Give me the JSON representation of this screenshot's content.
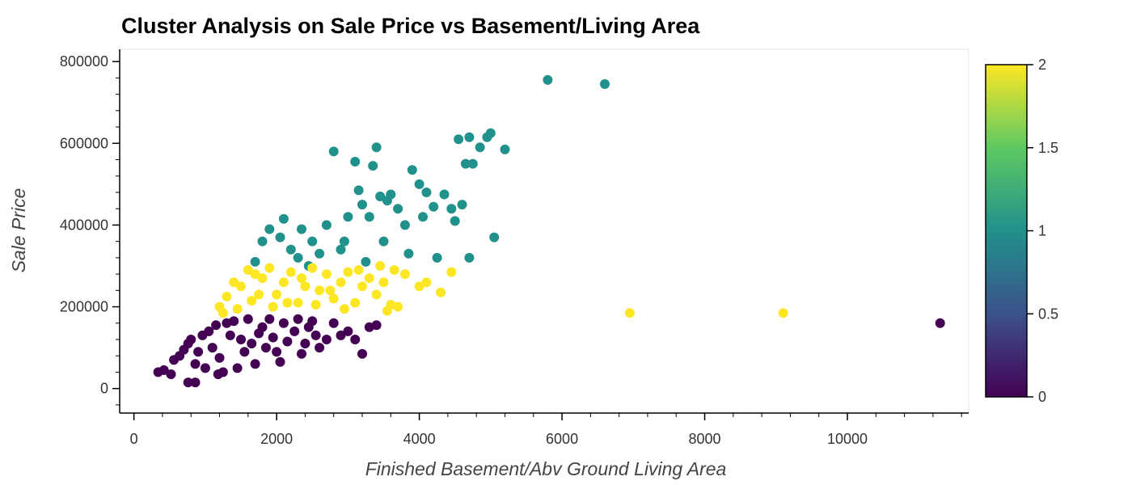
{
  "chart_data": {
    "type": "scatter",
    "title": "Cluster Analysis on Sale Price vs Basement/Living Area",
    "xlabel": "Finished Basement/Abv Ground Living Area",
    "ylabel": "Sale Price",
    "xlim": [
      -200,
      11700
    ],
    "ylim": [
      -60000,
      830000
    ],
    "x_ticks": [
      0,
      2000,
      4000,
      6000,
      8000,
      10000
    ],
    "x_tick_labels": [
      "0",
      "2000",
      "4000",
      "6000",
      "8000",
      "10000"
    ],
    "y_ticks": [
      0,
      200000,
      400000,
      600000,
      800000
    ],
    "y_tick_labels": [
      "0",
      "200000",
      "400000",
      "600000",
      "800000"
    ],
    "grid": false,
    "colorbar": {
      "ticks": [
        0,
        0.5,
        1,
        1.5,
        2
      ],
      "tick_labels": [
        "0",
        "0.5",
        "1",
        "1.5",
        "2"
      ],
      "colors": [
        "#440154",
        "#3b528b",
        "#21918c",
        "#5ec962",
        "#fde725"
      ]
    },
    "series": [
      {
        "cluster": 0,
        "color": "#440154",
        "points": [
          [
            340,
            40000
          ],
          [
            420,
            45000
          ],
          [
            520,
            35000
          ],
          [
            560,
            70000
          ],
          [
            640,
            80000
          ],
          [
            700,
            95000
          ],
          [
            760,
            110000
          ],
          [
            800,
            120000
          ],
          [
            860,
            60000
          ],
          [
            760,
            15000
          ],
          [
            860,
            15000
          ],
          [
            960,
            130000
          ],
          [
            1000,
            50000
          ],
          [
            1050,
            140000
          ],
          [
            1150,
            155000
          ],
          [
            1180,
            35000
          ],
          [
            1250,
            40000
          ],
          [
            1300,
            160000
          ],
          [
            1400,
            165000
          ],
          [
            1450,
            50000
          ],
          [
            1500,
            120000
          ],
          [
            1600,
            170000
          ],
          [
            1700,
            60000
          ],
          [
            1800,
            150000
          ],
          [
            1900,
            170000
          ],
          [
            2000,
            90000
          ],
          [
            2050,
            65000
          ],
          [
            2100,
            160000
          ],
          [
            2300,
            170000
          ],
          [
            2400,
            110000
          ],
          [
            2500,
            165000
          ],
          [
            2600,
            100000
          ],
          [
            2800,
            160000
          ],
          [
            2900,
            130000
          ],
          [
            3000,
            140000
          ],
          [
            3100,
            120000
          ],
          [
            3200,
            85000
          ],
          [
            3300,
            150000
          ],
          [
            3400,
            155000
          ],
          [
            900,
            90000
          ],
          [
            1100,
            100000
          ],
          [
            1200,
            75000
          ],
          [
            1350,
            130000
          ],
          [
            1550,
            90000
          ],
          [
            1650,
            110000
          ],
          [
            1750,
            135000
          ],
          [
            1850,
            100000
          ],
          [
            1950,
            125000
          ],
          [
            2150,
            115000
          ],
          [
            2250,
            140000
          ],
          [
            2350,
            85000
          ],
          [
            2450,
            150000
          ],
          [
            2550,
            130000
          ],
          [
            2700,
            120000
          ],
          [
            11300,
            160000
          ]
        ]
      },
      {
        "cluster": 1,
        "color": "#21918c",
        "points": [
          [
            1700,
            310000
          ],
          [
            1800,
            360000
          ],
          [
            1900,
            390000
          ],
          [
            2050,
            370000
          ],
          [
            2100,
            415000
          ],
          [
            2200,
            340000
          ],
          [
            2350,
            390000
          ],
          [
            2500,
            360000
          ],
          [
            2700,
            400000
          ],
          [
            2800,
            580000
          ],
          [
            2950,
            360000
          ],
          [
            3100,
            555000
          ],
          [
            3150,
            485000
          ],
          [
            3200,
            450000
          ],
          [
            3300,
            420000
          ],
          [
            3350,
            545000
          ],
          [
            3400,
            590000
          ],
          [
            3450,
            470000
          ],
          [
            3550,
            460000
          ],
          [
            3600,
            475000
          ],
          [
            3700,
            440000
          ],
          [
            3800,
            400000
          ],
          [
            3850,
            330000
          ],
          [
            3900,
            535000
          ],
          [
            4000,
            500000
          ],
          [
            4050,
            420000
          ],
          [
            4100,
            480000
          ],
          [
            4200,
            445000
          ],
          [
            4250,
            320000
          ],
          [
            4350,
            475000
          ],
          [
            4450,
            440000
          ],
          [
            4500,
            410000
          ],
          [
            4550,
            610000
          ],
          [
            4600,
            450000
          ],
          [
            4650,
            550000
          ],
          [
            4700,
            615000
          ],
          [
            4700,
            320000
          ],
          [
            4750,
            550000
          ],
          [
            4850,
            590000
          ],
          [
            4950,
            615000
          ],
          [
            5000,
            625000
          ],
          [
            5050,
            370000
          ],
          [
            5200,
            585000
          ],
          [
            5800,
            755000
          ],
          [
            6600,
            745000
          ],
          [
            2300,
            320000
          ],
          [
            2600,
            330000
          ],
          [
            2900,
            340000
          ],
          [
            3000,
            420000
          ],
          [
            3500,
            360000
          ],
          [
            3250,
            310000
          ],
          [
            2450,
            300000
          ]
        ]
      },
      {
        "cluster": 2,
        "color": "#fde725",
        "points": [
          [
            1200,
            200000
          ],
          [
            1300,
            225000
          ],
          [
            1400,
            260000
          ],
          [
            1500,
            250000
          ],
          [
            1600,
            290000
          ],
          [
            1700,
            280000
          ],
          [
            1800,
            270000
          ],
          [
            1900,
            295000
          ],
          [
            2000,
            230000
          ],
          [
            2100,
            260000
          ],
          [
            2200,
            285000
          ],
          [
            2300,
            210000
          ],
          [
            2400,
            250000
          ],
          [
            2500,
            295000
          ],
          [
            2600,
            240000
          ],
          [
            2700,
            280000
          ],
          [
            2800,
            220000
          ],
          [
            2900,
            260000
          ],
          [
            3000,
            285000
          ],
          [
            3100,
            210000
          ],
          [
            3200,
            250000
          ],
          [
            3300,
            270000
          ],
          [
            3400,
            230000
          ],
          [
            3500,
            260000
          ],
          [
            3600,
            205000
          ],
          [
            3700,
            200000
          ],
          [
            3800,
            280000
          ],
          [
            4000,
            250000
          ],
          [
            4100,
            260000
          ],
          [
            4300,
            235000
          ],
          [
            4450,
            285000
          ],
          [
            6950,
            185000
          ],
          [
            9100,
            185000
          ],
          [
            1250,
            185000
          ],
          [
            1450,
            195000
          ],
          [
            1650,
            215000
          ],
          [
            1750,
            230000
          ],
          [
            1950,
            200000
          ],
          [
            2150,
            210000
          ],
          [
            2350,
            270000
          ],
          [
            2550,
            205000
          ],
          [
            2750,
            240000
          ],
          [
            2950,
            195000
          ],
          [
            3150,
            290000
          ],
          [
            3450,
            300000
          ],
          [
            3650,
            290000
          ],
          [
            3550,
            190000
          ]
        ]
      }
    ]
  }
}
